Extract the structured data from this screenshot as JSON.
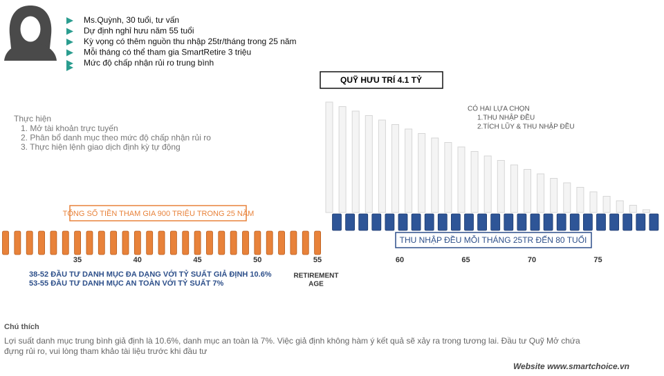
{
  "profile": [
    "Ms.Quỳnh, 30 tuổi, tư vấn",
    "Dự định nghỉ hưu năm 55 tuổi",
    "Kỳ vọng có thêm nguồn thu nhập 25tr/tháng trong 25 năm",
    "Mỗi tháng có thể tham gia SmartRetire 3 triệu",
    "Mức độ chấp nhận rủi ro trung bình"
  ],
  "steps": {
    "title": "Thực hiện",
    "items": [
      "1. Mở tài khoản trực tuyến",
      "2. Phân bổ danh mục theo mức độ chấp nhận rủi ro",
      "3. Thực hiện lệnh giao dịch định kỳ tự động"
    ]
  },
  "fund_label": "QUỸ HƯU TRÍ 4.1 TỶ",
  "options": {
    "title": "CÓ HAI LỰA CHỌN",
    "items": [
      "1.THU NHẬP ĐỀU",
      "2.TÍCH LŨY & THU NHẬP ĐỀU"
    ]
  },
  "contribution_label": "TỔNG SỐ TIỀN THAM GIA 900 TRIỆU TRONG 25 NĂM",
  "income_label": "THU NHẬP ĐỀU MỖI THÁNG 25TR ĐẾN 80 TUỔI",
  "age_labels_left": [
    "35",
    "40",
    "45",
    "50",
    "55"
  ],
  "age_labels_right": [
    "60",
    "65",
    "70",
    "75"
  ],
  "retirement_age": [
    "RETIREMENT",
    "AGE"
  ],
  "strategy": [
    "38-52 ĐẦU TƯ DANH MỤC ĐA DẠNG VỚI TỶ SUẤT GIẢ ĐỊNH 10.6%",
    "53-55 ĐẦU TƯ DANH MỤC AN TOÀN VỚI TỶ SUẤT 7%"
  ],
  "note": {
    "title": "Chú thích",
    "lines": [
      "Lợi suất danh mục trung bình giả định là 10.6%, danh mục an toàn là 7%. Việc giả định không hàm ý kết quả sẽ xảy ra trong tương lai. Đầu tư Quỹ Mở chứa",
      "đựng rủi ro, vui lòng tham khảo tài liệu trước khi đầu tư"
    ]
  },
  "website": "Website www.smartchoice.vn"
}
